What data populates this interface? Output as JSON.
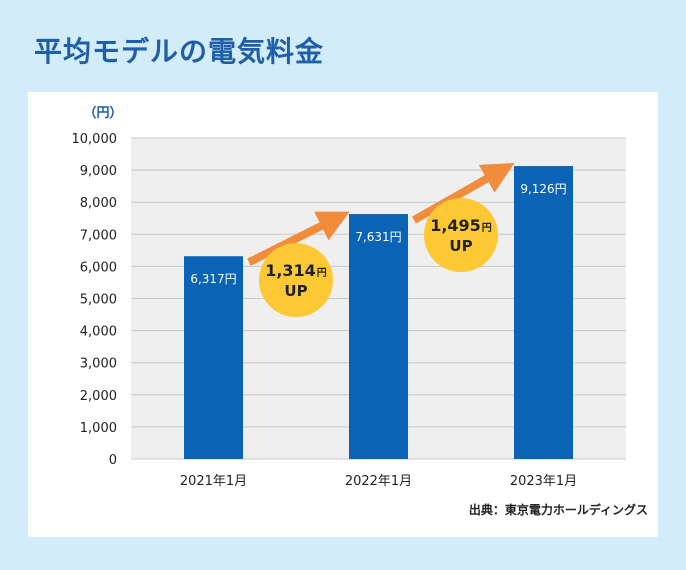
{
  "title": "平均モデルの電気料金",
  "source": "出典：東京電力ホールディングス",
  "colors": {
    "background": "#d3ecf9",
    "title": "#1f5faa",
    "bar": "#0a63b4",
    "plot_bg": "#efefef",
    "arrow": "#f08c3c",
    "badge": "#fcc934"
  },
  "chart_data": {
    "type": "bar",
    "title": "平均モデルの電気料金",
    "ylabel": "（円）",
    "xlabel": "",
    "ylim": [
      0,
      10000
    ],
    "yticks": [
      {
        "value": 0,
        "label": "0"
      },
      {
        "value": 1000,
        "label": "1,000"
      },
      {
        "value": 2000,
        "label": "2,000"
      },
      {
        "value": 3000,
        "label": "3,000"
      },
      {
        "value": 4000,
        "label": "4,000"
      },
      {
        "value": 5000,
        "label": "5,000"
      },
      {
        "value": 6000,
        "label": "6,000"
      },
      {
        "value": 7000,
        "label": "7,000"
      },
      {
        "value": 8000,
        "label": "8,000"
      },
      {
        "value": 9000,
        "label": "9,000"
      },
      {
        "value": 10000,
        "label": "10,000"
      }
    ],
    "grid": true,
    "categories": [
      "2021年1月",
      "2022年1月",
      "2023年1月"
    ],
    "values": [
      6317,
      7631,
      9126
    ],
    "data_labels": [
      "6,317円",
      "7,631円",
      "9,126円"
    ],
    "annotations": [
      {
        "between": [
          0,
          1
        ],
        "amount": "1,314",
        "unit": "円",
        "text": "UP"
      },
      {
        "between": [
          1,
          2
        ],
        "amount": "1,495",
        "unit": "円",
        "text": "UP"
      }
    ]
  }
}
